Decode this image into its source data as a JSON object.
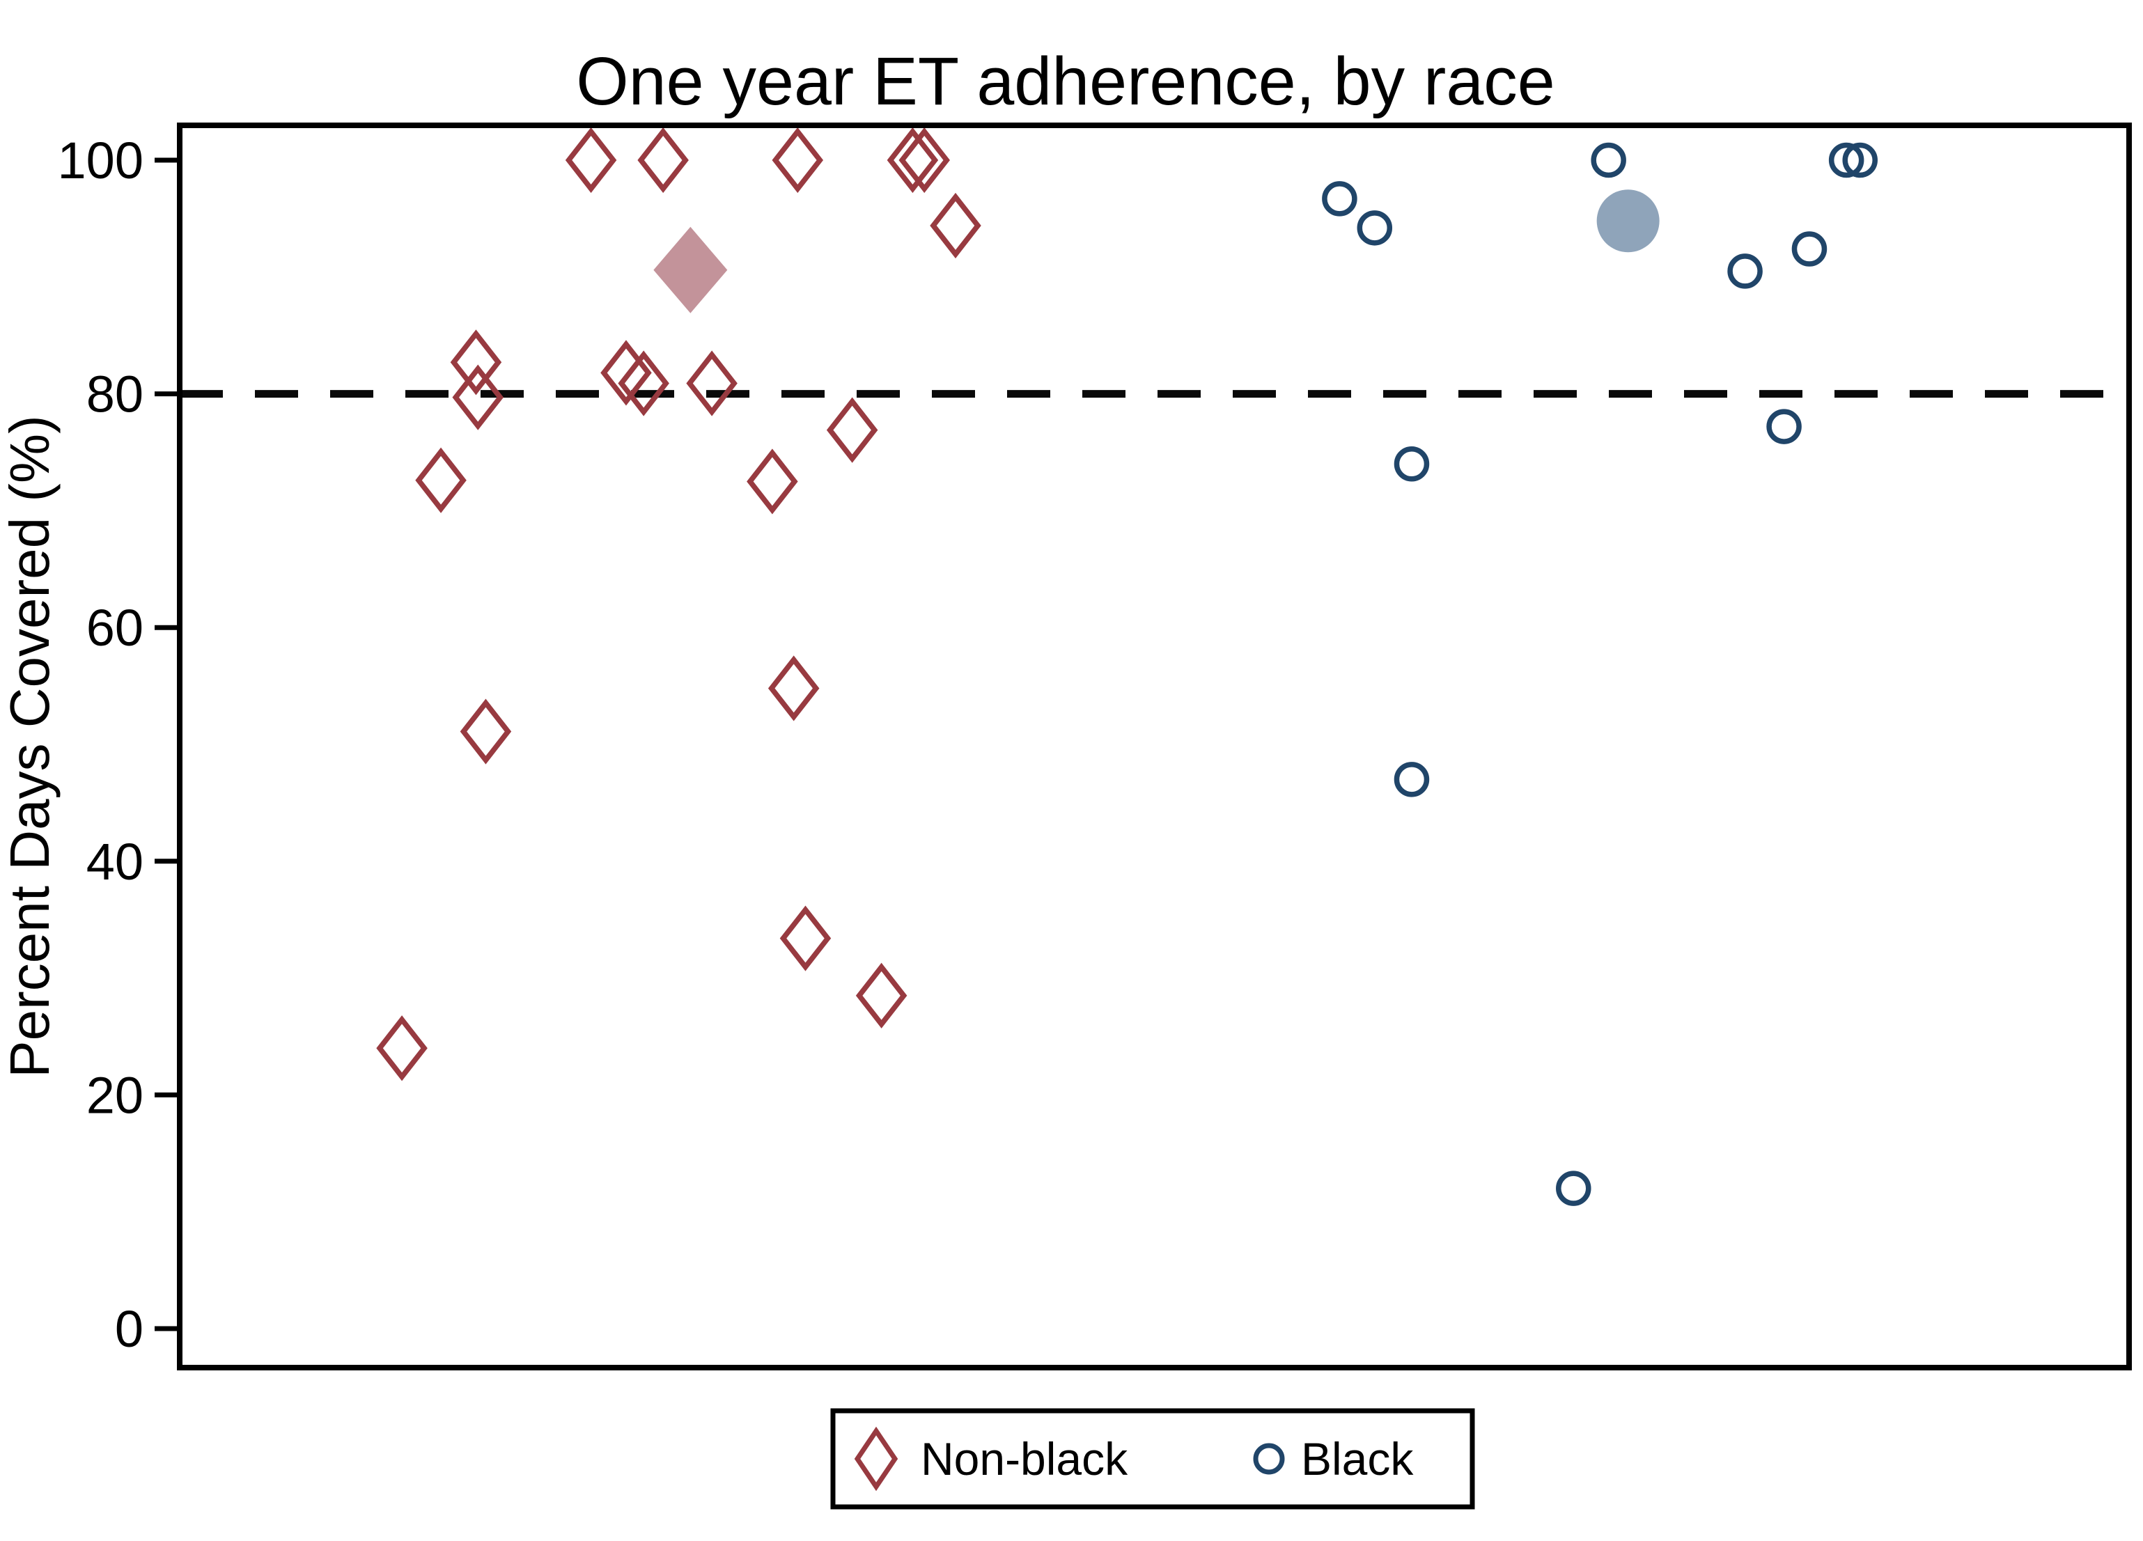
{
  "chart_data": {
    "type": "scatter",
    "title": "One year ET adherence, by race",
    "xlabel": "",
    "ylabel": "Percent Days Covered (%)",
    "ylim": [
      0,
      100
    ],
    "yticks": [
      0,
      20,
      40,
      60,
      80,
      100
    ],
    "grid": false,
    "reference_line": {
      "y": 80,
      "style": "dashed",
      "color": "#000000"
    },
    "legend": {
      "position": "bottom-center",
      "entries": [
        {
          "label": "Non-black",
          "marker": "open-diamond",
          "color": "#983a40"
        },
        {
          "label": "Black",
          "marker": "open-circle",
          "color": "#204569"
        }
      ]
    },
    "series": [
      {
        "name": "Non-black",
        "marker": "diamond",
        "style": "open",
        "color": "#983a40",
        "points": [
          {
            "x": 0.211,
            "y": 100
          },
          {
            "x": 0.248,
            "y": 100
          },
          {
            "x": 0.317,
            "y": 100
          },
          {
            "x": 0.376,
            "y": 100
          },
          {
            "x": 0.382,
            "y": 100
          },
          {
            "x": 0.398,
            "y": 94.4
          },
          {
            "x": 0.152,
            "y": 82.7
          },
          {
            "x": 0.153,
            "y": 79.7
          },
          {
            "x": 0.229,
            "y": 81.8
          },
          {
            "x": 0.238,
            "y": 80.9
          },
          {
            "x": 0.273,
            "y": 80.9
          },
          {
            "x": 0.345,
            "y": 76.9
          },
          {
            "x": 0.134,
            "y": 72.6
          },
          {
            "x": 0.304,
            "y": 72.5
          },
          {
            "x": 0.315,
            "y": 54.8
          },
          {
            "x": 0.157,
            "y": 51.1
          },
          {
            "x": 0.321,
            "y": 33.4
          },
          {
            "x": 0.36,
            "y": 28.5
          },
          {
            "x": 0.114,
            "y": 24.0
          }
        ]
      },
      {
        "name": "Black",
        "marker": "circle",
        "style": "open",
        "color": "#204569",
        "points": [
          {
            "x": 0.595,
            "y": 96.7
          },
          {
            "x": 0.613,
            "y": 94.2
          },
          {
            "x": 0.733,
            "y": 100
          },
          {
            "x": 0.803,
            "y": 90.5
          },
          {
            "x": 0.836,
            "y": 92.4
          },
          {
            "x": 0.855,
            "y": 100
          },
          {
            "x": 0.862,
            "y": 100
          },
          {
            "x": 0.823,
            "y": 77.2
          },
          {
            "x": 0.632,
            "y": 74.0
          },
          {
            "x": 0.632,
            "y": 47.0
          },
          {
            "x": 0.715,
            "y": 12.0
          }
        ]
      },
      {
        "name": "Non-black large filled",
        "marker": "diamond",
        "style": "filled-large",
        "color": "#c3939a",
        "points": [
          {
            "x": 0.262,
            "y": 90.6
          }
        ]
      },
      {
        "name": "Black large filled",
        "marker": "circle",
        "style": "filled-large",
        "color": "#8fa4ba",
        "points": [
          {
            "x": 0.743,
            "y": 94.8
          }
        ]
      }
    ]
  }
}
